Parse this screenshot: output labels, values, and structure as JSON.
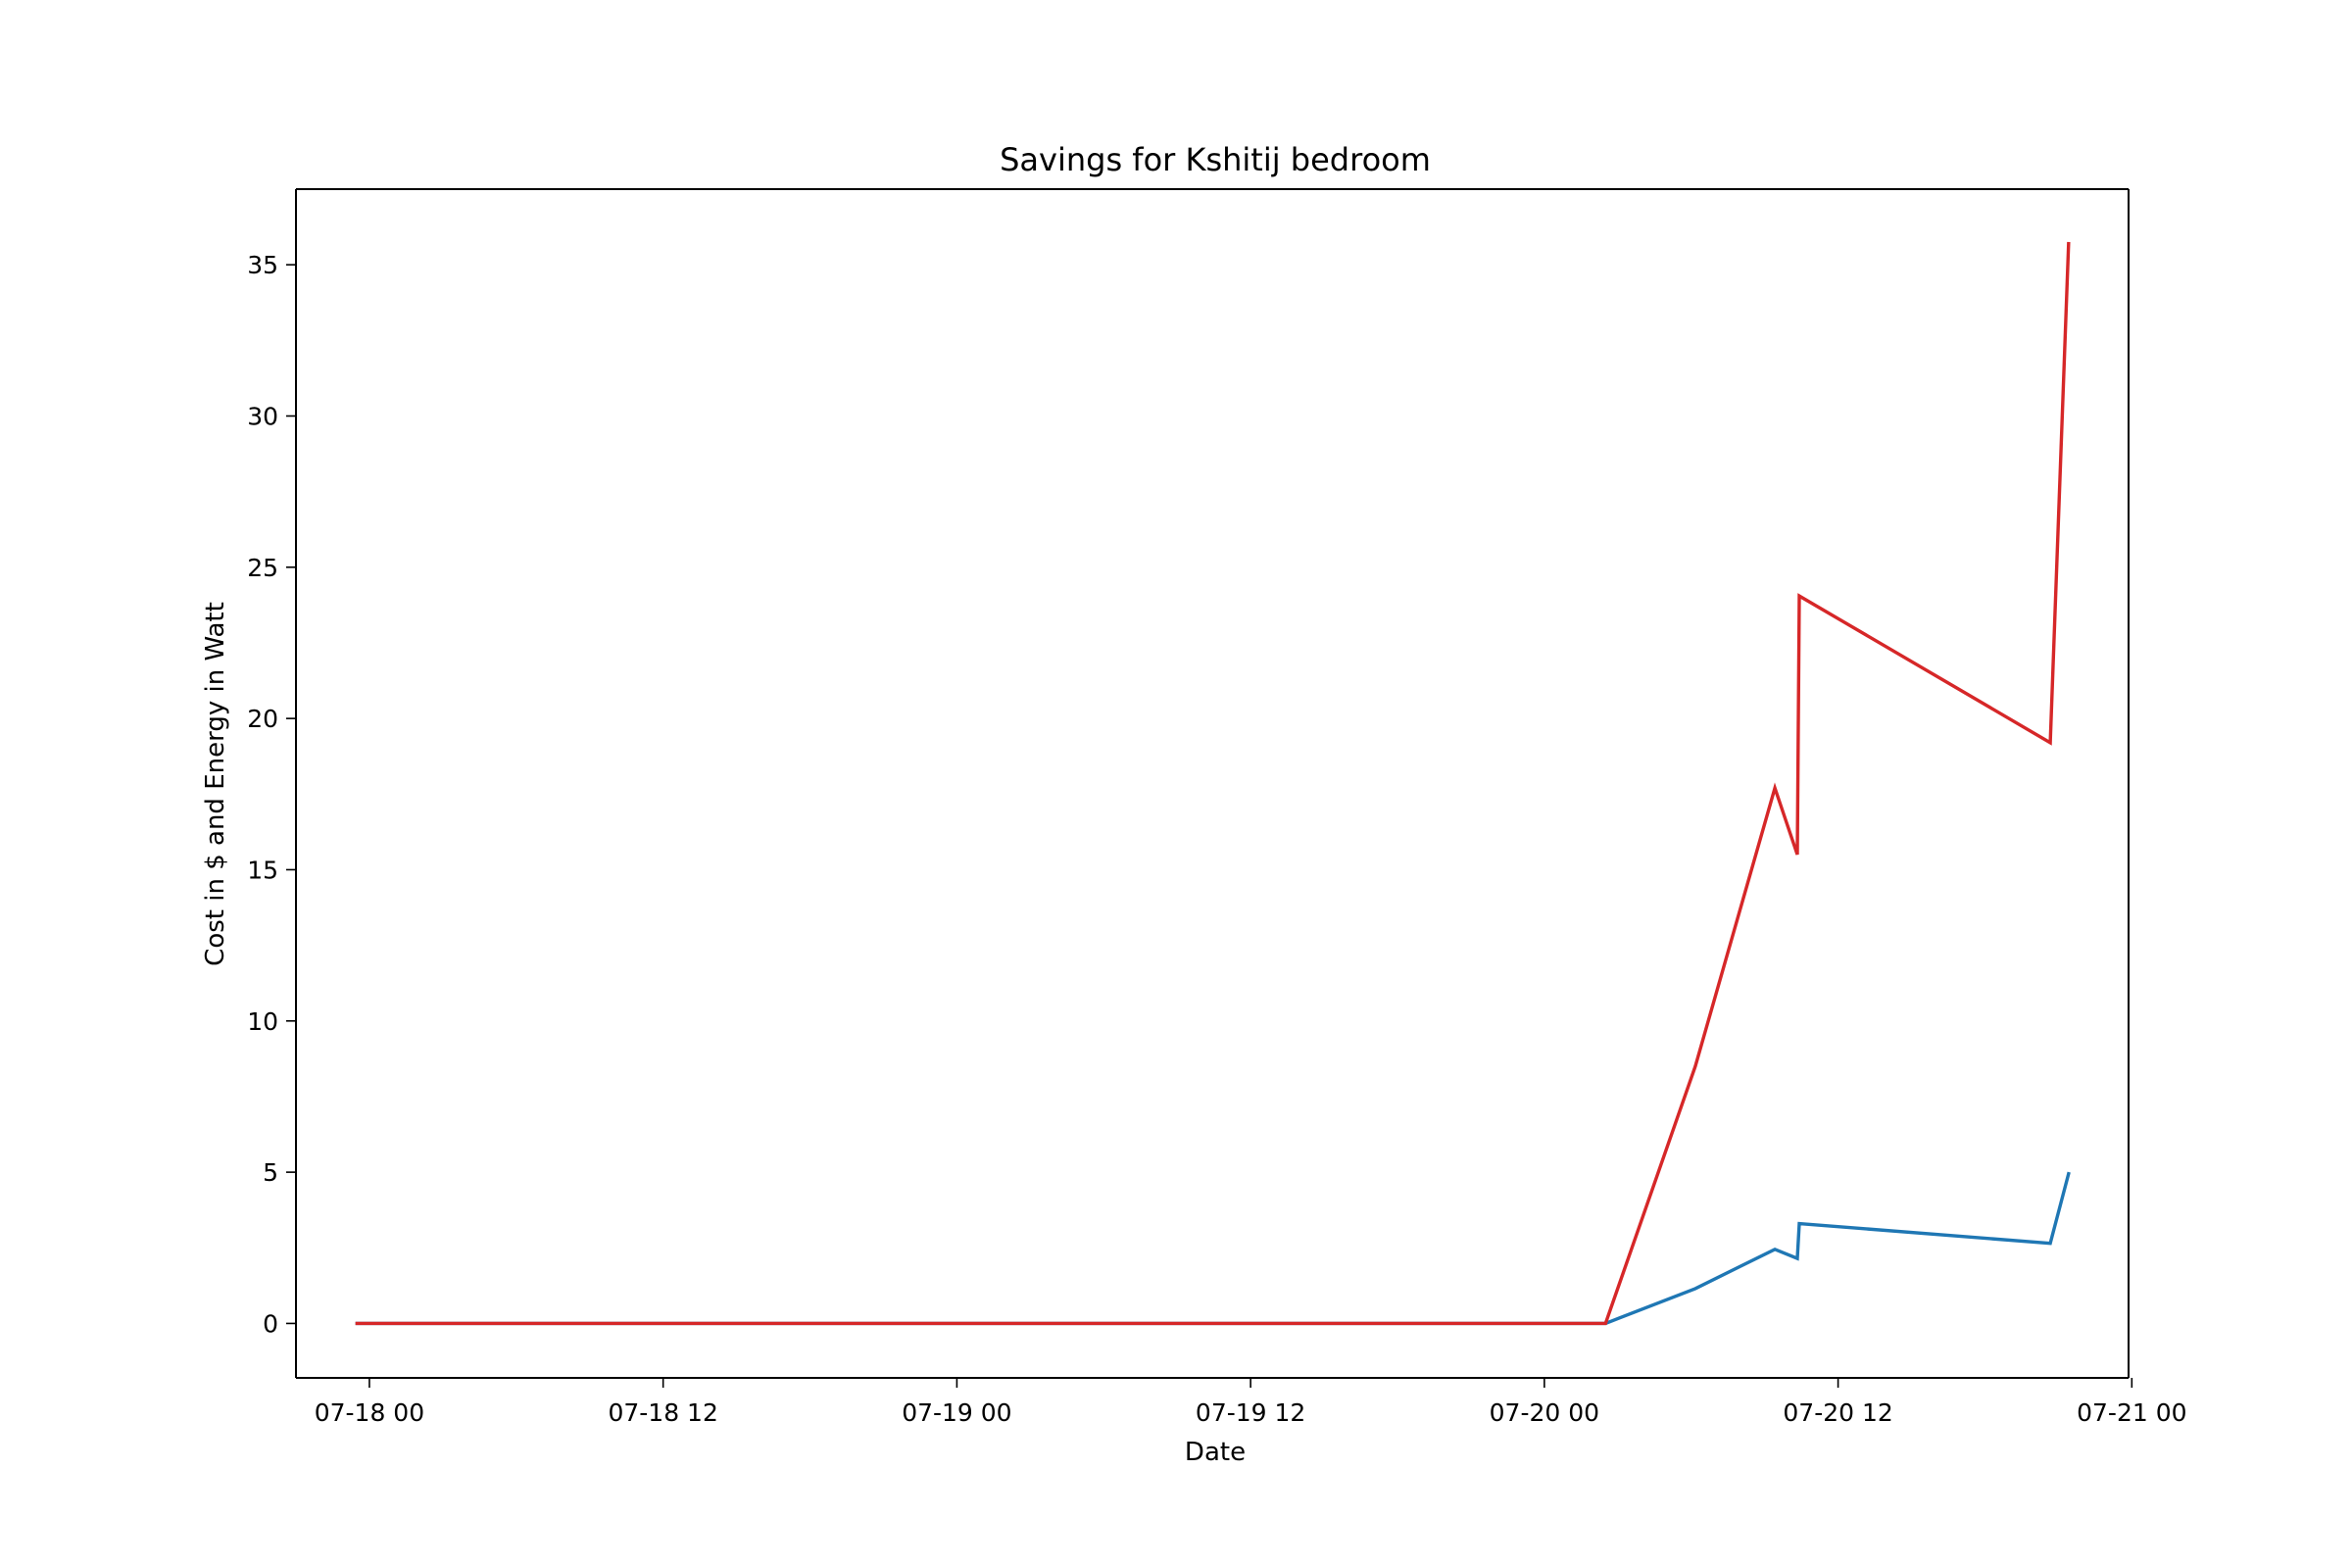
{
  "chart_data": {
    "type": "line",
    "title": "Savings for Kshitij bedroom",
    "xlabel": "Date",
    "ylabel": "Cost in $ and Energy in Watt",
    "xlim": [
      "07-17 21:00",
      "07-20 23:52"
    ],
    "ylim": [
      -1.8,
      37.5
    ],
    "x_ticks": [
      "07-18 00",
      "07-18 12",
      "07-19 00",
      "07-19 12",
      "07-20 00",
      "07-20 12",
      "07-21 00"
    ],
    "y_ticks": [
      "0",
      "5",
      "10",
      "15",
      "20",
      "25",
      "30",
      "35"
    ],
    "grid": false,
    "legend": "none",
    "series": [
      {
        "color": "#1f77b4",
        "points": [
          {
            "x": "07-17 23:30",
            "y": 0
          },
          {
            "x": "07-20 02:30",
            "y": 0
          },
          {
            "x": "07-20 06:10",
            "y": 1.15
          },
          {
            "x": "07-20 09:25",
            "y": 2.45
          },
          {
            "x": "07-20 10:20",
            "y": 2.15
          },
          {
            "x": "07-20 10:25",
            "y": 3.3
          },
          {
            "x": "07-20 20:40",
            "y": 2.65
          },
          {
            "x": "07-20 21:25",
            "y": 4.95
          }
        ]
      },
      {
        "color": "#d62728",
        "points": [
          {
            "x": "07-17 23:30",
            "y": 0
          },
          {
            "x": "07-20 02:30",
            "y": 0
          },
          {
            "x": "07-20 06:10",
            "y": 8.5
          },
          {
            "x": "07-20 09:25",
            "y": 17.7
          },
          {
            "x": "07-20 10:20",
            "y": 15.5
          },
          {
            "x": "07-20 10:25",
            "y": 24.05
          },
          {
            "x": "07-20 20:40",
            "y": 19.2
          },
          {
            "x": "07-20 21:25",
            "y": 35.7
          }
        ]
      }
    ]
  }
}
